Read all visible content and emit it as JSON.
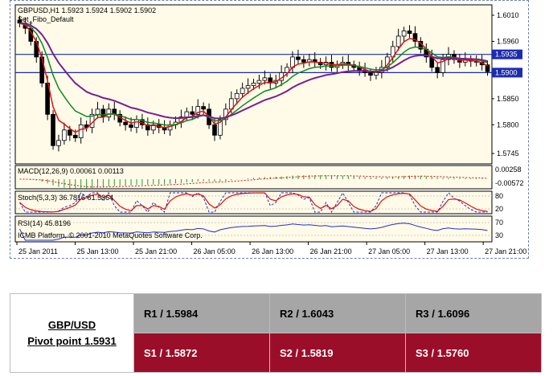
{
  "chart_data": {
    "type": "candlestick",
    "symbol_header": "GBPUSD,H1  1.5923 1.5924 1.5902 1.5902",
    "indicator_label": "Set_Fibo_Default",
    "y_ticks": [
      "1.6010",
      "1.5960",
      "1.5850",
      "1.5800",
      "1.5745"
    ],
    "ylim": [
      1.5725,
      1.603
    ],
    "horizontal_levels": [
      {
        "label": "1.5935",
        "value": 1.5935
      },
      {
        "label": "1.5900",
        "value": 1.59
      }
    ],
    "x_ticks": [
      "25 Jan 2011",
      "25 Jan 13:00",
      "25 Jan 21:00",
      "26 Jan 05:00",
      "26 Jan 13:00",
      "26 Jan 21:00",
      "27 Jan 05:00",
      "27 Jan 13:00",
      "27 Jan 21:00"
    ],
    "candles_close": [
      1.5995,
      1.5985,
      1.596,
      1.593,
      1.588,
      1.582,
      1.576,
      1.577,
      1.579,
      1.578,
      1.5775,
      1.58,
      1.5795,
      1.582,
      1.583,
      1.5815,
      1.583,
      1.582,
      1.5805,
      1.58,
      1.5795,
      1.581,
      1.58,
      1.579,
      1.58,
      1.5795,
      1.579,
      1.58,
      1.5805,
      1.5815,
      1.5825,
      1.582,
      1.5835,
      1.583,
      1.58,
      1.578,
      1.581,
      1.583,
      1.585,
      1.586,
      1.587,
      1.5875,
      1.588,
      1.5885,
      1.589,
      1.588,
      1.5885,
      1.59,
      1.591,
      1.593,
      1.5925,
      1.592,
      1.5925,
      1.592,
      1.5915,
      1.592,
      1.591,
      1.5915,
      1.592,
      1.5915,
      1.591,
      1.5905,
      1.59,
      1.5895,
      1.59,
      1.591,
      1.593,
      1.595,
      1.597,
      1.598,
      1.5975,
      1.596,
      1.5945,
      1.593,
      1.591,
      1.59,
      1.5925,
      1.5935,
      1.5925,
      1.592,
      1.5925,
      1.5922,
      1.592,
      1.5915,
      1.5902
    ],
    "macd_label": "MACD(12,26,9) 0.00061 0.00113",
    "macd_ticks": [
      "0.00258",
      "-0.00572"
    ],
    "stoch_label": "Stoch(5,3,3) 36.7816 61.5364",
    "stoch_ticks": [
      "80",
      "20"
    ],
    "rsi_label": "RSI(14) 45.8196",
    "rsi_ticks": [
      "70",
      "30"
    ],
    "copyright": "ICMB Platform, © 2001-2010 MetaQuotes Software Corp."
  },
  "pivot": {
    "pair": "GBP/USD",
    "pivot_point": "Pivot point 1.5931",
    "resistance": [
      "R1 / 1.5984",
      "R2 / 1.6043",
      "R3 / 1.6096"
    ],
    "support": [
      "S1 / 1.5872",
      "S2 / 1.5819",
      "S3 / 1.5760"
    ]
  }
}
